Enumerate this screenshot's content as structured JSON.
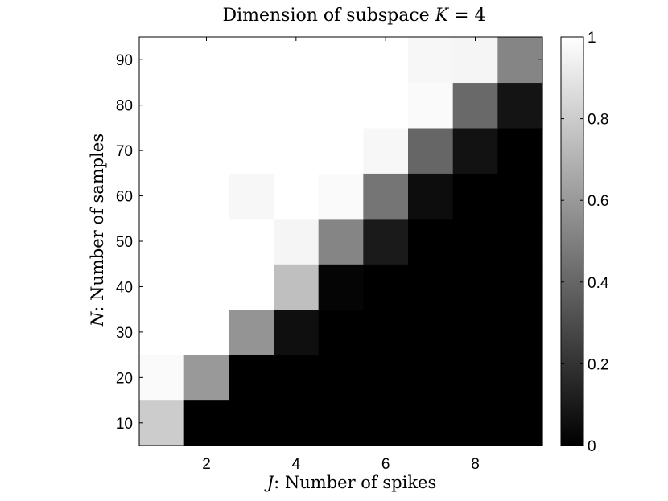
{
  "chart_data": {
    "type": "heatmap",
    "title": "Dimension of subspace K = 4",
    "title_parts": {
      "prefix": "Dimension of subspace ",
      "symbol": "K",
      "suffix": " = 4"
    },
    "xlabel": "J: Number of spikes",
    "xlabel_parts": {
      "symbol": "J",
      "suffix": ": Number of spikes"
    },
    "ylabel": "N: Number of samples",
    "ylabel_parts": {
      "symbol": "N",
      "suffix": ": Number of samples"
    },
    "x": [
      1,
      2,
      3,
      4,
      5,
      6,
      7,
      8,
      9
    ],
    "y": [
      10,
      20,
      30,
      40,
      50,
      60,
      70,
      80,
      90
    ],
    "xlim": [
      0.5,
      9.5
    ],
    "ylim": [
      5,
      95
    ],
    "x_ticks": [
      "2",
      "4",
      "6",
      "8"
    ],
    "x_tick_values": [
      2,
      4,
      6,
      8
    ],
    "y_ticks": [
      "10",
      "20",
      "30",
      "40",
      "50",
      "60",
      "70",
      "80",
      "90"
    ],
    "y_tick_values": [
      10,
      20,
      30,
      40,
      50,
      60,
      70,
      80,
      90
    ],
    "z": [
      [
        0.8,
        0.0,
        0.0,
        0.0,
        0.0,
        0.0,
        0.0,
        0.0,
        0.0
      ],
      [
        0.98,
        0.6,
        0.0,
        0.0,
        0.0,
        0.0,
        0.0,
        0.0,
        0.0
      ],
      [
        1.0,
        1.0,
        0.58,
        0.06,
        0.0,
        0.0,
        0.0,
        0.0,
        0.0
      ],
      [
        1.0,
        1.0,
        1.0,
        0.75,
        0.02,
        0.0,
        0.0,
        0.0,
        0.0
      ],
      [
        1.0,
        1.0,
        1.0,
        0.96,
        0.52,
        0.1,
        0.0,
        0.0,
        0.0
      ],
      [
        1.0,
        1.0,
        0.97,
        1.0,
        0.98,
        0.46,
        0.05,
        0.0,
        0.0
      ],
      [
        1.0,
        1.0,
        1.0,
        1.0,
        1.0,
        0.97,
        0.4,
        0.07,
        0.0
      ],
      [
        1.0,
        1.0,
        1.0,
        1.0,
        1.0,
        1.0,
        0.98,
        0.41,
        0.08
      ],
      [
        1.0,
        1.0,
        1.0,
        1.0,
        1.0,
        1.0,
        0.97,
        0.96,
        0.52
      ]
    ],
    "colormap": "gray",
    "clim": [
      0,
      1
    ],
    "colorbar": {
      "position": "right",
      "ticks": [
        "0",
        "0.2",
        "0.4",
        "0.6",
        "0.8",
        "1"
      ],
      "tick_values": [
        0,
        0.2,
        0.4,
        0.6,
        0.8,
        1
      ]
    }
  }
}
